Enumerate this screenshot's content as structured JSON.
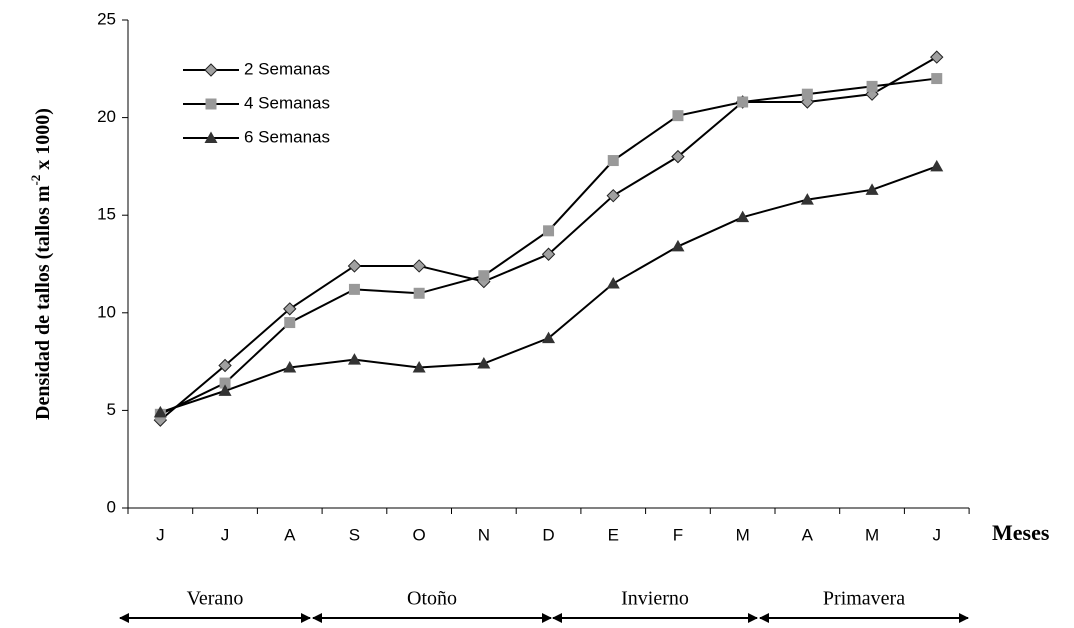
{
  "chart_data": {
    "type": "line",
    "ylabel": [
      "Densidad de tallos (tallos m",
      "-2",
      " x 1000)"
    ],
    "xlabel": "Meses",
    "categories": [
      "J",
      "J",
      "A",
      "S",
      "O",
      "N",
      "D",
      "E",
      "F",
      "M",
      "A",
      "M",
      "J"
    ],
    "seasons": [
      "Verano",
      "Otoño",
      "Invierno",
      "Primavera"
    ],
    "ylim": [
      0,
      25
    ],
    "yticks": [
      0,
      5,
      10,
      15,
      20,
      25
    ],
    "legend": "top-left",
    "series": [
      {
        "name": "2 Semanas",
        "marker": "diamond",
        "color": "#a0a0a0",
        "line_color": "#000000",
        "values": [
          4.5,
          7.3,
          10.2,
          12.4,
          12.4,
          11.6,
          13.0,
          16.0,
          18.0,
          20.8,
          20.8,
          21.2,
          23.1
        ]
      },
      {
        "name": "4 Semanas",
        "marker": "square",
        "color": "#999999",
        "line_color": "#000000",
        "values": [
          4.8,
          6.4,
          9.5,
          11.2,
          11.0,
          11.9,
          14.2,
          17.8,
          20.1,
          20.8,
          21.2,
          21.6,
          22.0
        ]
      },
      {
        "name": "6 Semanas",
        "marker": "triangle",
        "color": "#333333",
        "line_color": "#000000",
        "values": [
          4.9,
          6.0,
          7.2,
          7.6,
          7.2,
          7.4,
          8.7,
          11.5,
          13.4,
          14.9,
          15.8,
          16.3,
          17.5
        ]
      }
    ]
  }
}
